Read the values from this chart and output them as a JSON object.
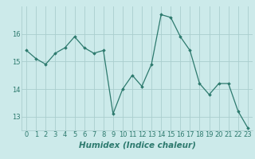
{
  "x": [
    0,
    1,
    2,
    3,
    4,
    5,
    6,
    7,
    8,
    9,
    10,
    11,
    12,
    13,
    14,
    15,
    16,
    17,
    18,
    19,
    20,
    21,
    22,
    23
  ],
  "y": [
    15.4,
    15.1,
    14.9,
    15.3,
    15.5,
    15.9,
    15.5,
    15.3,
    15.4,
    13.1,
    14.0,
    14.5,
    14.1,
    14.9,
    16.7,
    16.6,
    15.9,
    15.4,
    14.2,
    13.8,
    14.2,
    14.2,
    13.2,
    12.6
  ],
  "line_color": "#2d7a6e",
  "marker": "D",
  "marker_size": 1.8,
  "bg_color": "#cceaea",
  "grid_color": "#aacece",
  "xlabel": "Humidex (Indice chaleur)",
  "xlabel_fontsize": 7.5,
  "tick_fontsize": 6,
  "ylim": [
    12.5,
    17.0
  ],
  "yticks": [
    13,
    14,
    15,
    16
  ],
  "xticks": [
    0,
    1,
    2,
    3,
    4,
    5,
    6,
    7,
    8,
    9,
    10,
    11,
    12,
    13,
    14,
    15,
    16,
    17,
    18,
    19,
    20,
    21,
    22,
    23
  ]
}
